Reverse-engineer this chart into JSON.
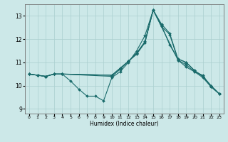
{
  "xlabel": "Humidex (Indice chaleur)",
  "bg_color": "#cce8e8",
  "grid_color": "#aacfcf",
  "line_color": "#1a6b6b",
  "xlim": [
    -0.5,
    23.5
  ],
  "ylim": [
    8.8,
    13.5
  ],
  "xticks": [
    0,
    1,
    2,
    3,
    4,
    5,
    6,
    7,
    8,
    9,
    10,
    11,
    12,
    13,
    14,
    15,
    16,
    17,
    18,
    19,
    20,
    21,
    22,
    23
  ],
  "yticks": [
    9,
    10,
    11,
    12,
    13
  ],
  "lines": [
    {
      "x": [
        0,
        1,
        2,
        3,
        4,
        5,
        6,
        7,
        8,
        9,
        10,
        11,
        12,
        13,
        14,
        15,
        16,
        17,
        18,
        19,
        20,
        21,
        22,
        23
      ],
      "y": [
        10.5,
        10.45,
        10.4,
        10.5,
        10.5,
        10.2,
        9.85,
        9.55,
        9.55,
        9.35,
        10.35,
        10.6,
        11.0,
        11.5,
        12.15,
        13.25,
        12.55,
        12.2,
        11.1,
        10.8,
        10.6,
        10.45,
        9.95,
        9.65
      ]
    },
    {
      "x": [
        0,
        1,
        2,
        3,
        4,
        10,
        11,
        12,
        13,
        14,
        15,
        16,
        17,
        18,
        19,
        20,
        21,
        22,
        23
      ],
      "y": [
        10.5,
        10.45,
        10.4,
        10.5,
        10.5,
        10.4,
        10.7,
        11.05,
        11.4,
        11.85,
        13.25,
        12.6,
        11.75,
        11.15,
        11.0,
        10.65,
        10.4,
        10.0,
        9.65
      ]
    },
    {
      "x": [
        0,
        1,
        2,
        3,
        4,
        10,
        11,
        12,
        13,
        14,
        15,
        16,
        17,
        18,
        19,
        20,
        21,
        22,
        23
      ],
      "y": [
        10.5,
        10.45,
        10.4,
        10.5,
        10.5,
        10.45,
        10.75,
        11.05,
        11.4,
        11.9,
        13.25,
        12.65,
        12.25,
        11.15,
        11.0,
        10.65,
        10.4,
        10.0,
        9.65
      ]
    },
    {
      "x": [
        0,
        1,
        2,
        3,
        4,
        10,
        11,
        12,
        13,
        14,
        15,
        18,
        19,
        20,
        21,
        22,
        23
      ],
      "y": [
        10.5,
        10.45,
        10.4,
        10.5,
        10.5,
        10.45,
        10.75,
        11.05,
        11.35,
        11.85,
        13.25,
        11.1,
        10.9,
        10.6,
        10.35,
        9.95,
        9.65
      ]
    }
  ]
}
